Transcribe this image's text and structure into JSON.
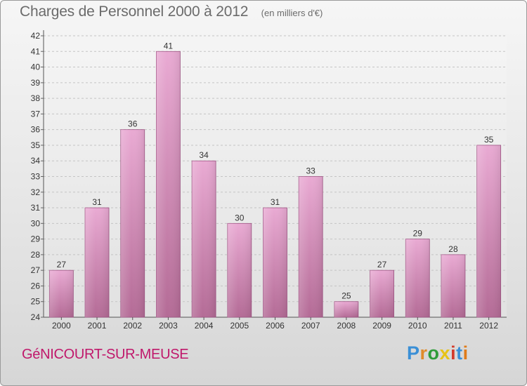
{
  "header": {
    "title": "Charges de Personnel 2000 à 2012",
    "subtitle": "(en milliers d'€)"
  },
  "footer": {
    "commune": "GéNICOURT-SUR-MEUSE",
    "brand": "Proxiti",
    "brand_colors": [
      "#3a8fd6",
      "#e08b2a",
      "#2f9c3a",
      "#e7c316",
      "#d23a2a",
      "#3a8fd6",
      "#e07b1a"
    ]
  },
  "colors": {
    "bar_light": "#e9aad3",
    "bar_dark": "#b46b96",
    "bar_edge": "#a05585",
    "title": "#6b6b6b",
    "commune": "#c0186b"
  },
  "chart_data": {
    "type": "bar",
    "title": "Charges de Personnel 2000 à 2012",
    "subtitle": "(en milliers d'€)",
    "categories": [
      "2000",
      "2001",
      "2002",
      "2003",
      "2004",
      "2005",
      "2006",
      "2007",
      "2008",
      "2009",
      "2010",
      "2011",
      "2012"
    ],
    "values": [
      27,
      31,
      36,
      41,
      34,
      30,
      31,
      33,
      25,
      27,
      29,
      28,
      35
    ],
    "ylim": [
      24,
      42
    ],
    "yticks": [
      24,
      25,
      26,
      27,
      28,
      29,
      30,
      31,
      32,
      33,
      34,
      35,
      36,
      37,
      38,
      39,
      40,
      41,
      42
    ],
    "grid": true,
    "data_labels": true
  }
}
